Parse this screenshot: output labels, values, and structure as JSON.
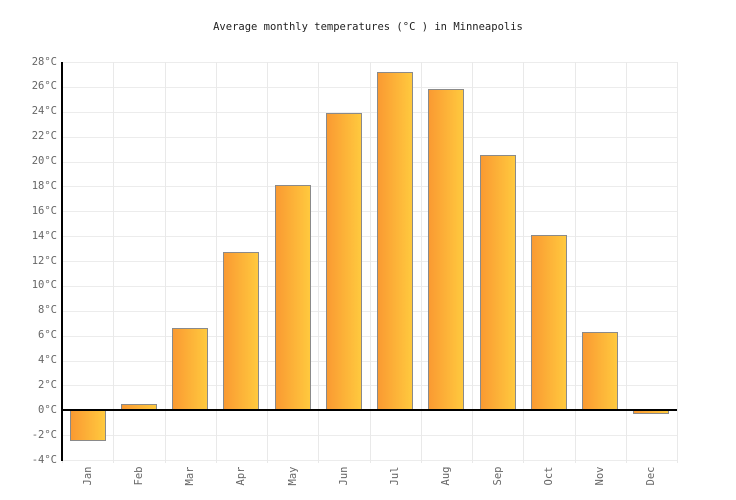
{
  "chart_data": {
    "type": "bar",
    "title": "Average monthly temperatures (°C ) in Minneapolis",
    "categories": [
      "Jan",
      "Feb",
      "Mar",
      "Apr",
      "May",
      "Jun",
      "Jul",
      "Aug",
      "Sep",
      "Oct",
      "Nov",
      "Dec"
    ],
    "values": [
      -2.5,
      0.5,
      6.6,
      12.7,
      18.1,
      23.9,
      27.2,
      25.8,
      20.5,
      14.1,
      6.3,
      -0.3
    ],
    "unit": "°C",
    "xlabel": "",
    "ylabel": "",
    "ylim": [
      -4,
      28
    ],
    "ytick_step": 2,
    "ytick_labels": [
      "28°C",
      "26°C",
      "24°C",
      "22°C",
      "20°C",
      "18°C",
      "16°C",
      "14°C",
      "12°C",
      "10°C",
      "8°C",
      "6°C",
      "4°C",
      "2°C",
      "0°C",
      "-2°C",
      "-4°C"
    ],
    "grid": true,
    "legend": false,
    "x_labels_rotated": true,
    "colors": {
      "bar_gradient_left": "#fa9a32",
      "bar_gradient_right": "#ffc93e",
      "bar_border": "#8a8a8a",
      "axis": "#000000",
      "zero_line": "#000000",
      "gridline": "#ececec",
      "tick_label": "#666666",
      "title": "#222222",
      "background": "#ffffff"
    }
  }
}
